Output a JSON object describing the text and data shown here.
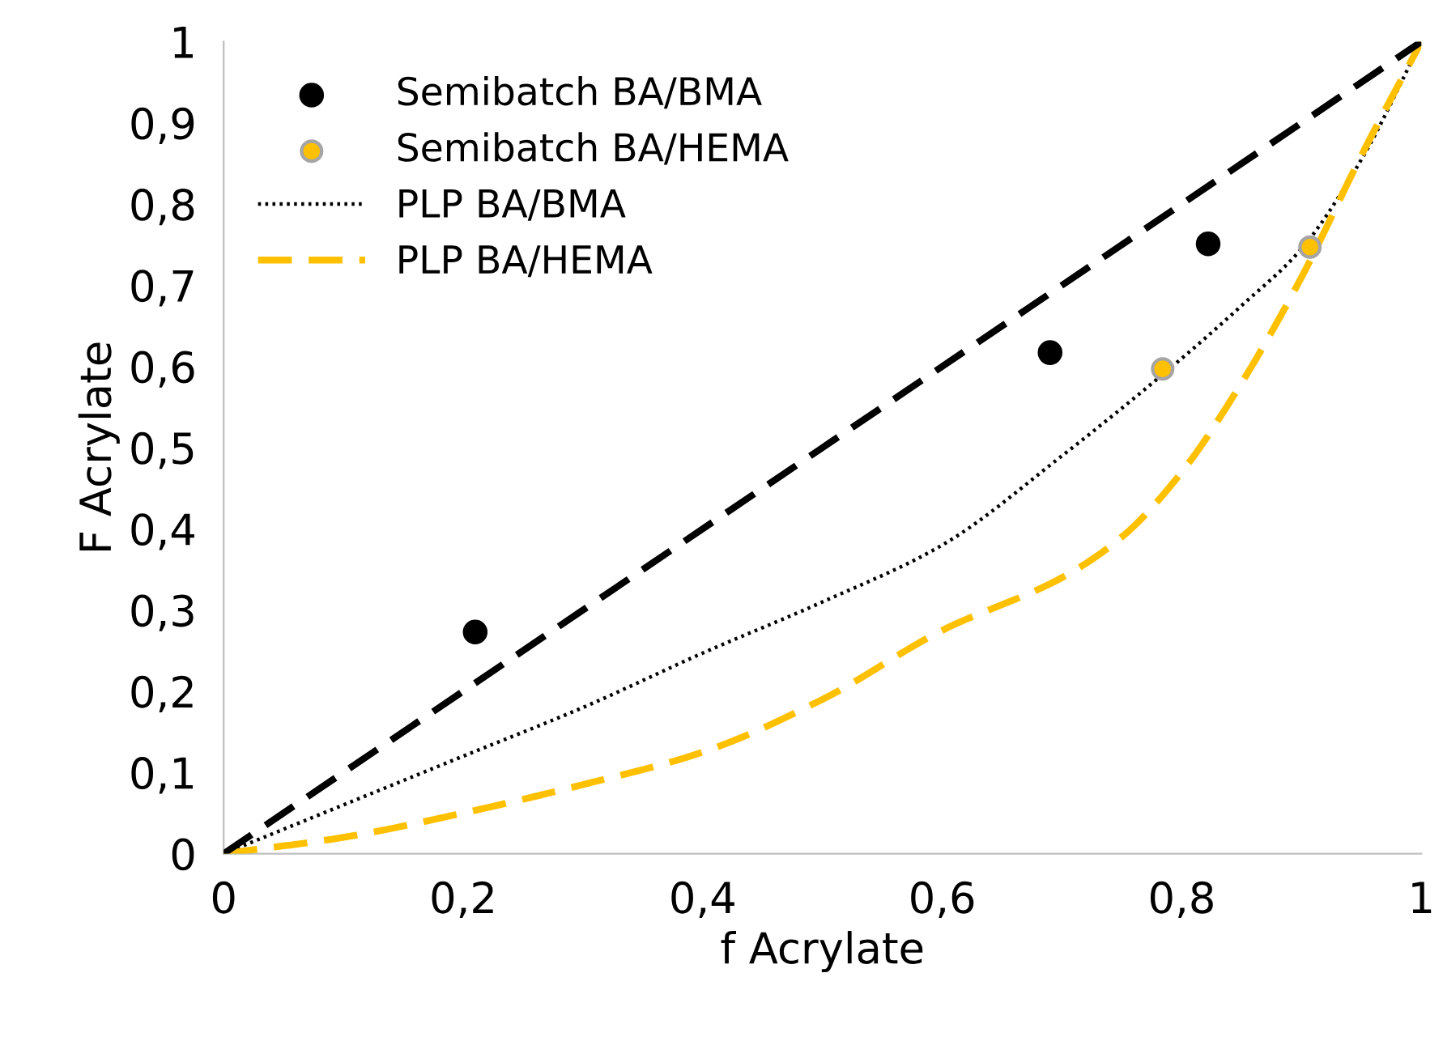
{
  "chart_data": {
    "type": "scatter",
    "xlabel": "f Acrylate",
    "ylabel": "F Acrylate",
    "xlim": [
      0,
      1
    ],
    "ylim": [
      0,
      1
    ],
    "xticks": [
      0,
      {
        "value": 0.2,
        "label": "0,2"
      },
      {
        "value": 0.4,
        "label": "0,4"
      },
      {
        "value": 0.6,
        "label": "0,6"
      },
      {
        "value": 0.8,
        "label": "0,8"
      },
      1
    ],
    "yticks": [
      0,
      {
        "value": 0.1,
        "label": "0,1"
      },
      {
        "value": 0.2,
        "label": "0,2"
      },
      {
        "value": 0.3,
        "label": "0,3"
      },
      {
        "value": 0.4,
        "label": "0,4"
      },
      {
        "value": 0.5,
        "label": "0,5"
      },
      {
        "value": 0.6,
        "label": "0,6"
      },
      {
        "value": 0.7,
        "label": "0,7"
      },
      {
        "value": 0.8,
        "label": "0,8"
      },
      {
        "value": 0.9,
        "label": "0,9"
      },
      1
    ],
    "grid": false,
    "legend": "top left",
    "series": [
      {
        "name": "Semibatch BA/BMA",
        "marker": "circle",
        "color": "#000000",
        "x": [
          0.21,
          0.69,
          0.822
        ],
        "values": [
          0.273,
          0.617,
          0.751
        ]
      },
      {
        "name": "Semibatch BA/HEMA",
        "marker": "circle",
        "color": "#ffc000",
        "x": [
          0.784,
          0.907
        ],
        "values": [
          0.597,
          0.747
        ]
      },
      {
        "name": "PLP BA/BMA",
        "type": "line",
        "line_style": "dotted",
        "color": "#000000",
        "x": [
          0,
          0.1,
          0.2,
          0.3,
          0.4,
          0.5,
          0.6,
          0.7,
          0.8,
          0.85,
          0.9,
          0.95,
          1
        ],
        "values": [
          0,
          0.06,
          0.12,
          0.18,
          0.247,
          0.31,
          0.38,
          0.49,
          0.61,
          0.675,
          0.745,
          0.855,
          1
        ]
      },
      {
        "name": "PLP BA/HEMA",
        "type": "line",
        "line_style": "dashed",
        "color": "#ffc000",
        "x": [
          0,
          0.1,
          0.2,
          0.3,
          0.4,
          0.5,
          0.6,
          0.7,
          0.75,
          0.8,
          0.85,
          0.9,
          0.95,
          1
        ],
        "values": [
          0,
          0.02,
          0.05,
          0.085,
          0.125,
          0.19,
          0.275,
          0.34,
          0.39,
          0.47,
          0.58,
          0.71,
          0.86,
          1
        ]
      },
      {
        "type": "line",
        "line_style": "dashed",
        "color": "#000000",
        "x": [
          0,
          1
        ],
        "values": [
          0,
          1
        ]
      }
    ]
  }
}
